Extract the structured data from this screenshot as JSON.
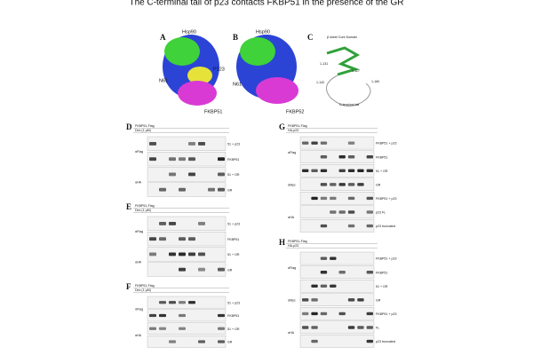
{
  "title": "The C-terminal tail of p23 contacts FKBP51 in the presence of the GR",
  "panels": [
    {
      "label": "A",
      "annotations": [
        "Hsp90",
        "P123",
        "N61",
        "FKBP51"
      ]
    },
    {
      "label": "B",
      "annotations": [
        "Hsp90",
        "N61",
        "FKBP52"
      ]
    },
    {
      "label": "C",
      "annotations": [
        "β sheet Core Domain",
        "1-131",
        "1-117",
        "1-142",
        "1-160",
        "C-terminal tail"
      ]
    },
    {
      "label": "D",
      "header": [
        "FKBP51-Flag",
        "Dex (1 μM)"
      ],
      "antibodies": [
        "αFlag",
        "αHA"
      ],
      "bands": [
        "51 + p23",
        "FKBP51",
        "51 + GR",
        "GR"
      ]
    },
    {
      "label": "E",
      "header": [
        "FKBP51-Flag",
        "Dex (1 μM)"
      ],
      "antibodies": [
        "αFlag",
        "αHA"
      ],
      "bands": [
        "51 + p23",
        "FKBP51",
        "51 + GR",
        "GR"
      ]
    },
    {
      "label": "F",
      "header": [
        "FKBP51-Flag",
        "Dex (1 μM)"
      ],
      "antibodies": [
        "αFlag",
        "αHA"
      ],
      "bands": [
        "51 + p23",
        "FKBP51",
        "51 + GR",
        "GR"
      ]
    },
    {
      "label": "G",
      "header": [
        "FKBP51-Flag",
        "HA-p23"
      ],
      "antibodies": [
        "αFlag",
        "αMyc",
        "αHA"
      ],
      "bands": [
        "FKBP51 + p23",
        "FKBP51",
        "51 + GR",
        "GR",
        "FKBP51 + p23",
        "p23 FL",
        "p23 truncated"
      ]
    },
    {
      "label": "H",
      "header": [
        "FKBP51-Flag",
        "HA-p23"
      ],
      "antibodies": [
        "αFlag",
        "αMyc",
        "αHA"
      ],
      "bands": [
        "FKBP51 + p23",
        "FKBP51",
        "51 + GR",
        "GR",
        "FKBP51 + p23",
        "FL",
        "p23 truncated"
      ]
    }
  ]
}
